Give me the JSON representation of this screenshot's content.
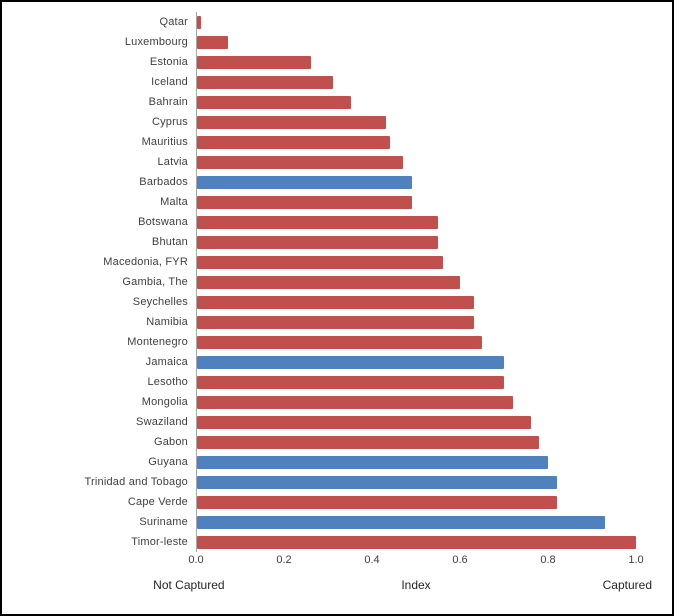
{
  "chart_data": {
    "type": "bar",
    "orientation": "horizontal",
    "title": "",
    "xlabel": "Index",
    "left_label": "Not Captured",
    "right_label": "Captured",
    "xlim": [
      0,
      1.0
    ],
    "xticks": [
      "0.0",
      "0.2",
      "0.4",
      "0.6",
      "0.8",
      "1.0"
    ],
    "legend": "none",
    "grid": "off",
    "colors": {
      "red": "#C0504D",
      "blue": "#4F81BD"
    },
    "categories": [
      "Qatar",
      "Luxembourg",
      "Estonia",
      "Iceland",
      "Bahrain",
      "Cyprus",
      "Mauritius",
      "Latvia",
      "Barbados",
      "Malta",
      "Botswana",
      "Bhutan",
      "Macedonia, FYR",
      "Gambia, The",
      "Seychelles",
      "Namibia",
      "Montenegro",
      "Jamaica",
      "Lesotho",
      "Mongolia",
      "Swaziland",
      "Gabon",
      "Guyana",
      "Trinidad and Tobago",
      "Cape Verde",
      "Suriname",
      "Timor-leste"
    ],
    "values": [
      0.01,
      0.07,
      0.26,
      0.31,
      0.35,
      0.43,
      0.44,
      0.47,
      0.49,
      0.49,
      0.55,
      0.55,
      0.56,
      0.6,
      0.63,
      0.63,
      0.65,
      0.7,
      0.7,
      0.72,
      0.76,
      0.78,
      0.8,
      0.82,
      0.82,
      0.93,
      1.0
    ],
    "bar_colors": [
      "red",
      "red",
      "red",
      "red",
      "red",
      "red",
      "red",
      "red",
      "blue",
      "red",
      "red",
      "red",
      "red",
      "red",
      "red",
      "red",
      "red",
      "blue",
      "red",
      "red",
      "red",
      "red",
      "blue",
      "blue",
      "red",
      "blue",
      "red"
    ]
  }
}
